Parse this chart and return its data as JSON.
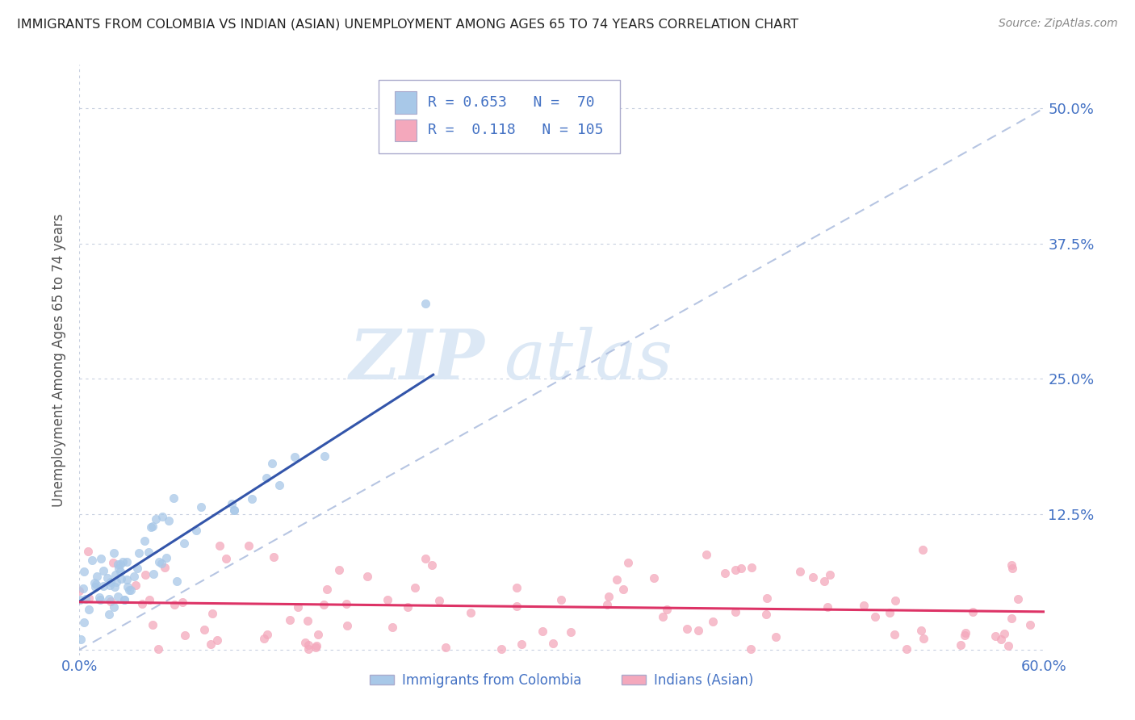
{
  "title": "IMMIGRANTS FROM COLOMBIA VS INDIAN (ASIAN) UNEMPLOYMENT AMONG AGES 65 TO 74 YEARS CORRELATION CHART",
  "source": "Source: ZipAtlas.com",
  "ylabel": "Unemployment Among Ages 65 to 74 years",
  "xlim": [
    0.0,
    0.6
  ],
  "ylim": [
    -0.005,
    0.54
  ],
  "ytick_vals": [
    0.0,
    0.125,
    0.25,
    0.375,
    0.5
  ],
  "ytick_labels": [
    "",
    "12.5%",
    "25.0%",
    "37.5%",
    "50.0%"
  ],
  "xtick_vals": [
    0.0,
    0.6
  ],
  "xtick_labels": [
    "0.0%",
    "60.0%"
  ],
  "legend1_label": "Immigrants from Colombia",
  "legend2_label": "Indians (Asian)",
  "R1": 0.653,
  "N1": 70,
  "R2": 0.118,
  "N2": 105,
  "color1": "#a8c8e8",
  "color2": "#f4a8bc",
  "trend1_color": "#3355aa",
  "trend2_color": "#dd3366",
  "diag_color": "#aabbdd",
  "watermark": "ZIPatlas",
  "watermark_color": "#dce8f5",
  "background_color": "#ffffff",
  "grid_color": "#c8d0e0",
  "tick_color": "#4472c4",
  "legend_box_color": "#aaaacc",
  "title_color": "#222222",
  "source_color": "#888888",
  "ylabel_color": "#555555"
}
